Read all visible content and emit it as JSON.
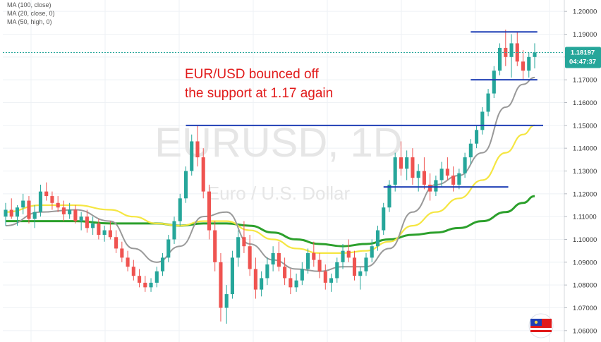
{
  "chart_data": {
    "type": "candlestick",
    "symbol": "EURUSD",
    "timeframe": "1D",
    "watermark": {
      "symbol_line": "EURUSD, 1D",
      "name_line": "Euro / U.S. Dollar"
    },
    "indicators": [
      {
        "label": "MA (100, close)",
        "color": "#2ca02c"
      },
      {
        "label": "MA (20, close, 0)",
        "color": "#999999"
      },
      {
        "label": "MA (50, high, 0)",
        "color": "#f5e642"
      }
    ],
    "y_axis": {
      "side": "right",
      "ylim": [
        1.055,
        1.205
      ],
      "ticks": [
        "1.06000",
        "1.07000",
        "1.08000",
        "1.09000",
        "1.10000",
        "1.11000",
        "1.12000",
        "1.13000",
        "1.14000",
        "1.15000",
        "1.16000",
        "1.17000",
        "1.18000",
        "1.19000",
        "1.20000"
      ]
    },
    "last_price": {
      "value": "1.18197",
      "countdown": "04:47:37",
      "level": 1.18197,
      "color": "#26a69a"
    },
    "horizontal_lines": [
      {
        "value": 1.15,
        "x_start": 62,
        "x_end": 192,
        "color": "#1f3fb5"
      },
      {
        "value": 1.123,
        "x_start": 130,
        "x_end": 170,
        "color": "#1f3fb5"
      },
      {
        "value": 1.17,
        "x_start": 160,
        "x_end": 180,
        "color": "#1f3fb5"
      },
      {
        "value": 1.191,
        "x_start": 160,
        "x_end": 180,
        "color": "#1f3fb5"
      }
    ],
    "annotation": {
      "lines": [
        "EUR/USD bounced off",
        "the support at 1.17 again"
      ],
      "color": "#e11a1a"
    },
    "colors": {
      "up": "#26a69a",
      "down": "#ef5350",
      "grid": "#eef1f5"
    },
    "ohlc": [
      [
        1.11,
        1.116,
        1.106,
        1.113
      ],
      [
        1.113,
        1.118,
        1.109,
        1.11
      ],
      [
        1.11,
        1.115,
        1.106,
        1.114
      ],
      [
        1.114,
        1.12,
        1.111,
        1.117
      ],
      [
        1.117,
        1.119,
        1.107,
        1.109
      ],
      [
        1.109,
        1.115,
        1.105,
        1.112
      ],
      [
        1.112,
        1.124,
        1.11,
        1.121
      ],
      [
        1.121,
        1.125,
        1.117,
        1.119
      ],
      [
        1.119,
        1.121,
        1.113,
        1.116
      ],
      [
        1.116,
        1.119,
        1.112,
        1.114
      ],
      [
        1.114,
        1.117,
        1.108,
        1.111
      ],
      [
        1.111,
        1.116,
        1.109,
        1.113
      ],
      [
        1.113,
        1.115,
        1.107,
        1.108
      ],
      [
        1.108,
        1.112,
        1.104,
        1.11
      ],
      [
        1.11,
        1.113,
        1.103,
        1.105
      ],
      [
        1.105,
        1.11,
        1.102,
        1.107
      ],
      [
        1.107,
        1.109,
        1.1,
        1.102
      ],
      [
        1.102,
        1.106,
        1.099,
        1.104
      ],
      [
        1.104,
        1.108,
        1.1,
        1.101
      ],
      [
        1.101,
        1.104,
        1.094,
        1.096
      ],
      [
        1.096,
        1.099,
        1.09,
        1.092
      ],
      [
        1.092,
        1.095,
        1.086,
        1.088
      ],
      [
        1.088,
        1.091,
        1.082,
        1.084
      ],
      [
        1.084,
        1.087,
        1.079,
        1.081
      ],
      [
        1.081,
        1.084,
        1.077,
        1.079
      ],
      [
        1.079,
        1.083,
        1.077,
        1.081
      ],
      [
        1.081,
        1.088,
        1.079,
        1.086
      ],
      [
        1.086,
        1.094,
        1.084,
        1.092
      ],
      [
        1.092,
        1.102,
        1.09,
        1.1
      ],
      [
        1.1,
        1.11,
        1.098,
        1.108
      ],
      [
        1.108,
        1.12,
        1.106,
        1.118
      ],
      [
        1.118,
        1.132,
        1.116,
        1.13
      ],
      [
        1.13,
        1.146,
        1.128,
        1.143
      ],
      [
        1.143,
        1.15,
        1.132,
        1.136
      ],
      [
        1.136,
        1.14,
        1.118,
        1.121
      ],
      [
        1.121,
        1.124,
        1.1,
        1.104
      ],
      [
        1.104,
        1.108,
        1.086,
        1.09
      ],
      [
        1.09,
        1.094,
        1.064,
        1.07
      ],
      [
        1.07,
        1.08,
        1.063,
        1.076
      ],
      [
        1.076,
        1.095,
        1.074,
        1.092
      ],
      [
        1.092,
        1.104,
        1.088,
        1.101
      ],
      [
        1.101,
        1.108,
        1.094,
        1.097
      ],
      [
        1.097,
        1.102,
        1.084,
        1.087
      ],
      [
        1.087,
        1.092,
        1.074,
        1.078
      ],
      [
        1.078,
        1.086,
        1.075,
        1.083
      ],
      [
        1.083,
        1.092,
        1.08,
        1.089
      ],
      [
        1.089,
        1.097,
        1.086,
        1.094
      ],
      [
        1.094,
        1.099,
        1.086,
        1.088
      ],
      [
        1.088,
        1.092,
        1.08,
        1.083
      ],
      [
        1.083,
        1.087,
        1.076,
        1.079
      ],
      [
        1.079,
        1.085,
        1.077,
        1.082
      ],
      [
        1.082,
        1.09,
        1.08,
        1.087
      ],
      [
        1.087,
        1.096,
        1.085,
        1.094
      ],
      [
        1.094,
        1.099,
        1.088,
        1.091
      ],
      [
        1.091,
        1.094,
        1.083,
        1.086
      ],
      [
        1.086,
        1.089,
        1.078,
        1.081
      ],
      [
        1.081,
        1.085,
        1.077,
        1.083
      ],
      [
        1.083,
        1.092,
        1.081,
        1.09
      ],
      [
        1.09,
        1.098,
        1.087,
        1.095
      ],
      [
        1.095,
        1.1,
        1.09,
        1.092
      ],
      [
        1.092,
        1.095,
        1.082,
        1.084
      ],
      [
        1.084,
        1.088,
        1.078,
        1.086
      ],
      [
        1.086,
        1.094,
        1.084,
        1.092
      ],
      [
        1.092,
        1.1,
        1.09,
        1.097
      ],
      [
        1.097,
        1.106,
        1.095,
        1.104
      ],
      [
        1.104,
        1.116,
        1.102,
        1.114
      ],
      [
        1.114,
        1.126,
        1.112,
        1.124
      ],
      [
        1.124,
        1.138,
        1.121,
        1.136
      ],
      [
        1.136,
        1.143,
        1.128,
        1.131
      ],
      [
        1.131,
        1.139,
        1.126,
        1.136
      ],
      [
        1.136,
        1.14,
        1.124,
        1.127
      ],
      [
        1.127,
        1.133,
        1.121,
        1.13
      ],
      [
        1.13,
        1.136,
        1.122,
        1.124
      ],
      [
        1.124,
        1.129,
        1.117,
        1.121
      ],
      [
        1.121,
        1.128,
        1.119,
        1.126
      ],
      [
        1.126,
        1.134,
        1.123,
        1.131
      ],
      [
        1.131,
        1.136,
        1.126,
        1.128
      ],
      [
        1.128,
        1.132,
        1.121,
        1.124
      ],
      [
        1.124,
        1.131,
        1.122,
        1.129
      ],
      [
        1.129,
        1.138,
        1.127,
        1.136
      ],
      [
        1.136,
        1.144,
        1.133,
        1.142
      ],
      [
        1.142,
        1.15,
        1.14,
        1.148
      ],
      [
        1.148,
        1.158,
        1.146,
        1.156
      ],
      [
        1.156,
        1.166,
        1.154,
        1.164
      ],
      [
        1.164,
        1.176,
        1.162,
        1.174
      ],
      [
        1.174,
        1.186,
        1.172,
        1.184
      ],
      [
        1.184,
        1.192,
        1.176,
        1.18
      ],
      [
        1.18,
        1.19,
        1.171,
        1.186
      ],
      [
        1.186,
        1.191,
        1.176,
        1.178
      ],
      [
        1.178,
        1.183,
        1.17,
        1.174
      ],
      [
        1.174,
        1.182,
        1.171,
        1.18
      ],
      [
        1.18,
        1.186,
        1.175,
        1.182
      ]
    ],
    "ma": {
      "ma20": [
        [
          0,
          1.106
        ],
        [
          6,
          1.112
        ],
        [
          12,
          1.113
        ],
        [
          18,
          1.108
        ],
        [
          22,
          1.096
        ],
        [
          26,
          1.09
        ],
        [
          30,
          1.097
        ],
        [
          34,
          1.11
        ],
        [
          38,
          1.112
        ],
        [
          42,
          1.098
        ],
        [
          46,
          1.091
        ],
        [
          50,
          1.087
        ],
        [
          54,
          1.086
        ],
        [
          58,
          1.088
        ],
        [
          62,
          1.088
        ],
        [
          66,
          1.096
        ],
        [
          70,
          1.112
        ],
        [
          74,
          1.124
        ],
        [
          78,
          1.128
        ],
        [
          82,
          1.138
        ],
        [
          86,
          1.158
        ],
        [
          89,
          1.168
        ],
        [
          91,
          1.171
        ]
      ],
      "ma50": [
        [
          0,
          1.112
        ],
        [
          6,
          1.115
        ],
        [
          12,
          1.115
        ],
        [
          18,
          1.113
        ],
        [
          22,
          1.11
        ],
        [
          26,
          1.107
        ],
        [
          30,
          1.106
        ],
        [
          34,
          1.108
        ],
        [
          38,
          1.108
        ],
        [
          42,
          1.104
        ],
        [
          46,
          1.1
        ],
        [
          50,
          1.096
        ],
        [
          54,
          1.094
        ],
        [
          58,
          1.094
        ],
        [
          62,
          1.095
        ],
        [
          66,
          1.099
        ],
        [
          70,
          1.106
        ],
        [
          74,
          1.112
        ],
        [
          78,
          1.118
        ],
        [
          82,
          1.126
        ],
        [
          86,
          1.138
        ],
        [
          89,
          1.146
        ],
        [
          91,
          1.15
        ]
      ],
      "ma100": [
        [
          0,
          1.108
        ],
        [
          6,
          1.108
        ],
        [
          12,
          1.108
        ],
        [
          18,
          1.107
        ],
        [
          22,
          1.107
        ],
        [
          26,
          1.107
        ],
        [
          30,
          1.106
        ],
        [
          34,
          1.107
        ],
        [
          38,
          1.107
        ],
        [
          42,
          1.106
        ],
        [
          46,
          1.103
        ],
        [
          50,
          1.1
        ],
        [
          54,
          1.098
        ],
        [
          58,
          1.097
        ],
        [
          62,
          1.098
        ],
        [
          66,
          1.1
        ],
        [
          70,
          1.102
        ],
        [
          74,
          1.103
        ],
        [
          78,
          1.105
        ],
        [
          82,
          1.108
        ],
        [
          86,
          1.112
        ],
        [
          89,
          1.116
        ],
        [
          91,
          1.119
        ]
      ]
    }
  }
}
